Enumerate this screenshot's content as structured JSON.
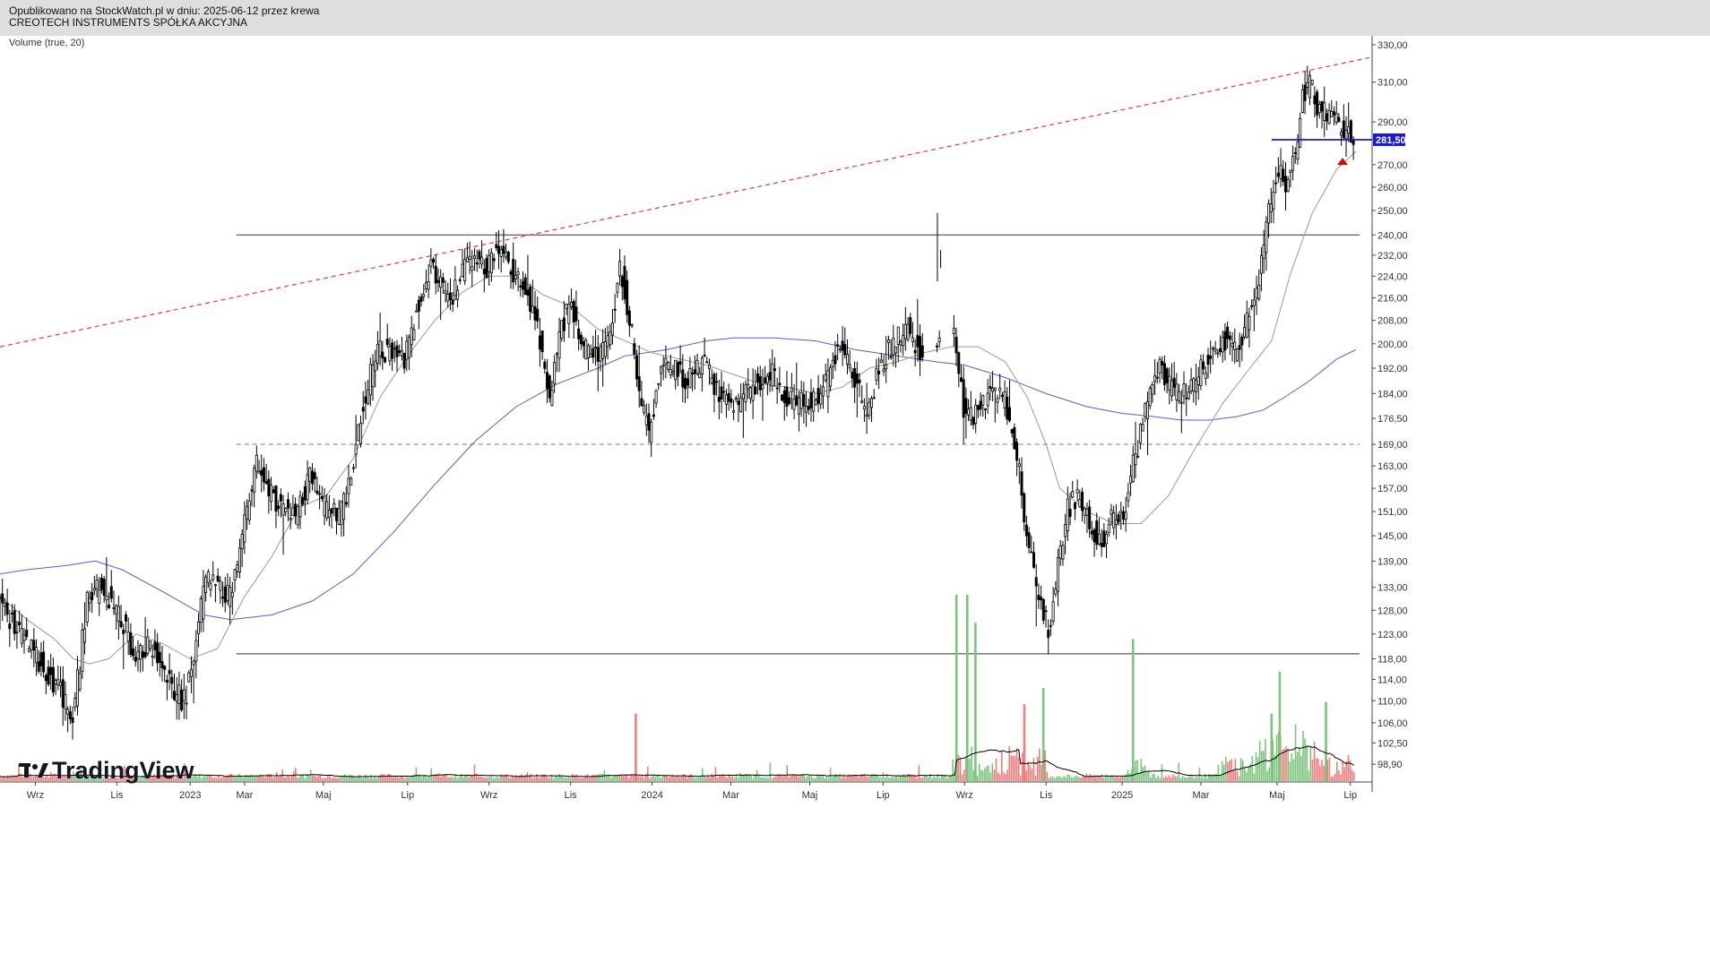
{
  "header": {
    "published": "Opublikowano na StockWatch.pl w dniu: 2025-06-12 przez krewa",
    "instrument": "CREOTECH INSTRUMENTS SPÓŁKA AKCYJNA"
  },
  "indicator_label": "Volume (true, 20)",
  "logo": {
    "text": "TradingView",
    "icon": "tradingview-logo-icon"
  },
  "colors": {
    "candle": "#000000",
    "ma_short": "#9a9a9a",
    "ma_long": "#5b5bd6",
    "trendline": "#e53935",
    "price_marker": "#1a1ad6",
    "volume_up": "#7cc47c",
    "volume_down": "#ef7d7d",
    "volume_ma": "#000000",
    "alert": "#e00000"
  },
  "chart_data": {
    "type": "candlestick",
    "y_axis": {
      "ticks": [
        "330,00",
        "310,00",
        "290,00",
        "270,00",
        "260,00",
        "250,00",
        "240,00",
        "232,00",
        "224,00",
        "216,00",
        "208,00",
        "200,00",
        "192,00",
        "184,00",
        "176,50",
        "169,00",
        "163,00",
        "157,00",
        "151,00",
        "145,00",
        "139,00",
        "133,00",
        "128,00",
        "123,00",
        "118,00",
        "114,00",
        "110,00",
        "106,00",
        "102,50",
        "98,90"
      ],
      "tick_values": [
        330,
        310,
        290,
        270,
        260,
        250,
        240,
        232,
        224,
        216,
        208,
        200,
        192,
        184,
        176.5,
        169,
        163,
        157,
        151,
        145,
        139,
        133,
        128,
        123,
        118,
        114,
        110,
        106,
        102.5,
        98.9
      ],
      "range": [
        96,
        335
      ],
      "scale": "log"
    },
    "x_axis": {
      "labels": [
        {
          "t": 1.3,
          "label": "Wrz"
        },
        {
          "t": 4.3,
          "label": "Lis"
        },
        {
          "t": 7.0,
          "label": "2023"
        },
        {
          "t": 9.0,
          "label": "Mar"
        },
        {
          "t": 11.9,
          "label": "Maj"
        },
        {
          "t": 15.0,
          "label": "Lip"
        },
        {
          "t": 18.0,
          "label": "Wrz"
        },
        {
          "t": 21.0,
          "label": "Lis"
        },
        {
          "t": 24.0,
          "label": "2024"
        },
        {
          "t": 26.9,
          "label": "Mar"
        },
        {
          "t": 29.8,
          "label": "Maj"
        },
        {
          "t": 32.5,
          "label": "Lip"
        },
        {
          "t": 35.5,
          "label": "Wrz"
        },
        {
          "t": 38.5,
          "label": "Lis"
        },
        {
          "t": 41.3,
          "label": "2025"
        },
        {
          "t": 44.2,
          "label": "Mar"
        },
        {
          "t": 47.0,
          "label": "Maj"
        },
        {
          "t": 49.7,
          "label": "Lip"
        }
      ],
      "range": [
        0,
        50.5
      ]
    },
    "last_price": {
      "value": 281.5,
      "label": "281,50"
    },
    "price_path": [
      [
        0.0,
        131
      ],
      [
        0.7,
        124
      ],
      [
        1.5,
        118
      ],
      [
        2.3,
        112
      ],
      [
        2.7,
        106
      ],
      [
        3.0,
        116
      ],
      [
        3.3,
        130
      ],
      [
        3.8,
        133
      ],
      [
        4.3,
        129
      ],
      [
        4.7,
        124
      ],
      [
        5.0,
        116
      ],
      [
        5.5,
        121
      ],
      [
        6.0,
        118
      ],
      [
        6.4,
        112
      ],
      [
        6.9,
        110
      ],
      [
        7.3,
        122
      ],
      [
        7.7,
        135
      ],
      [
        8.2,
        132
      ],
      [
        8.6,
        131
      ],
      [
        9.0,
        145
      ],
      [
        9.5,
        164
      ],
      [
        10.0,
        156
      ],
      [
        10.5,
        152
      ],
      [
        11.0,
        150
      ],
      [
        11.5,
        160
      ],
      [
        12.0,
        152
      ],
      [
        12.6,
        150
      ],
      [
        13.0,
        160
      ],
      [
        13.4,
        178
      ],
      [
        14.0,
        200
      ],
      [
        14.5,
        196
      ],
      [
        15.0,
        195
      ],
      [
        15.5,
        215
      ],
      [
        16.0,
        229
      ],
      [
        16.6,
        213
      ],
      [
        17.3,
        230
      ],
      [
        18.0,
        228
      ],
      [
        18.5,
        236
      ],
      [
        19.0,
        226
      ],
      [
        19.5,
        218
      ],
      [
        20.0,
        200
      ],
      [
        20.3,
        182
      ],
      [
        20.7,
        205
      ],
      [
        21.1,
        213
      ],
      [
        21.5,
        199
      ],
      [
        22.0,
        197
      ],
      [
        22.5,
        200
      ],
      [
        22.9,
        228
      ],
      [
        23.3,
        207
      ],
      [
        23.7,
        180
      ],
      [
        24.0,
        171
      ],
      [
        24.4,
        192
      ],
      [
        25.0,
        191
      ],
      [
        25.5,
        188
      ],
      [
        26.0,
        195
      ],
      [
        26.5,
        185
      ],
      [
        27.0,
        181
      ],
      [
        27.5,
        183
      ],
      [
        28.0,
        188
      ],
      [
        28.5,
        190
      ],
      [
        29.0,
        183
      ],
      [
        29.5,
        181
      ],
      [
        30.0,
        181
      ],
      [
        30.5,
        187
      ],
      [
        31.0,
        201
      ],
      [
        31.5,
        190
      ],
      [
        32.0,
        177
      ],
      [
        32.5,
        194
      ],
      [
        33.0,
        201
      ],
      [
        33.5,
        205
      ],
      [
        34.0,
        196
      ],
      [
        34.6,
        199
      ],
      [
        35.2,
        204
      ],
      [
        35.6,
        176
      ],
      [
        36.0,
        178
      ],
      [
        36.6,
        186
      ],
      [
        37.1,
        181
      ],
      [
        37.5,
        166
      ],
      [
        37.9,
        144
      ],
      [
        38.4,
        128
      ],
      [
        38.7,
        124
      ],
      [
        39.0,
        137
      ],
      [
        39.4,
        152
      ],
      [
        39.8,
        155
      ],
      [
        40.2,
        148
      ],
      [
        40.6,
        143
      ],
      [
        41.0,
        150
      ],
      [
        41.4,
        148
      ],
      [
        41.8,
        166
      ],
      [
        42.0,
        169
      ],
      [
        42.4,
        186
      ],
      [
        42.8,
        192
      ],
      [
        43.3,
        184
      ],
      [
        43.7,
        185
      ],
      [
        44.2,
        190
      ],
      [
        44.7,
        197
      ],
      [
        45.2,
        202
      ],
      [
        45.6,
        196
      ],
      [
        46.0,
        208
      ],
      [
        46.4,
        222
      ],
      [
        46.7,
        243
      ],
      [
        47.1,
        268
      ],
      [
        47.4,
        263
      ],
      [
        47.8,
        276
      ],
      [
        48.0,
        302
      ],
      [
        48.3,
        308
      ],
      [
        48.7,
        295
      ],
      [
        49.0,
        292
      ],
      [
        49.3,
        288
      ],
      [
        49.6,
        287
      ],
      [
        49.9,
        284
      ]
    ],
    "ma_short_path": [
      [
        0.0,
        131
      ],
      [
        1.0,
        126
      ],
      [
        2.0,
        122
      ],
      [
        2.7,
        118
      ],
      [
        3.3,
        117
      ],
      [
        4.0,
        118
      ],
      [
        5.0,
        123
      ],
      [
        6.0,
        121
      ],
      [
        7.0,
        118
      ],
      [
        8.0,
        120
      ],
      [
        9.0,
        131
      ],
      [
        10.0,
        140
      ],
      [
        11.0,
        152
      ],
      [
        12.0,
        155
      ],
      [
        13.0,
        165
      ],
      [
        14.0,
        183
      ],
      [
        15.0,
        196
      ],
      [
        16.0,
        208
      ],
      [
        17.0,
        218
      ],
      [
        18.0,
        224
      ],
      [
        19.0,
        224
      ],
      [
        20.0,
        217
      ],
      [
        21.0,
        213
      ],
      [
        22.0,
        205
      ],
      [
        23.0,
        201
      ],
      [
        24.0,
        197
      ],
      [
        25.0,
        195
      ],
      [
        26.0,
        193
      ],
      [
        27.0,
        190
      ],
      [
        28.0,
        187
      ],
      [
        29.0,
        186
      ],
      [
        30.0,
        184
      ],
      [
        31.0,
        186
      ],
      [
        32.0,
        192
      ],
      [
        33.0,
        194
      ],
      [
        34.0,
        197
      ],
      [
        35.0,
        199
      ],
      [
        36.0,
        199
      ],
      [
        37.0,
        194
      ],
      [
        37.8,
        183
      ],
      [
        38.5,
        169
      ],
      [
        39.0,
        157
      ],
      [
        40.0,
        151
      ],
      [
        41.0,
        148
      ],
      [
        42.0,
        148
      ],
      [
        43.0,
        155
      ],
      [
        44.0,
        168
      ],
      [
        45.0,
        181
      ],
      [
        46.0,
        192
      ],
      [
        46.8,
        201
      ],
      [
        47.5,
        225
      ],
      [
        48.3,
        249
      ],
      [
        49.2,
        268
      ],
      [
        49.9,
        276
      ]
    ],
    "ma_long_path": [
      [
        0.0,
        136
      ],
      [
        1.0,
        137
      ],
      [
        2.5,
        138
      ],
      [
        3.5,
        139
      ],
      [
        4.5,
        137
      ],
      [
        6.0,
        132
      ],
      [
        7.5,
        127
      ],
      [
        8.5,
        126
      ],
      [
        10.0,
        127
      ],
      [
        11.5,
        130
      ],
      [
        13.0,
        136
      ],
      [
        14.5,
        146
      ],
      [
        16.0,
        158
      ],
      [
        17.5,
        170
      ],
      [
        19.0,
        180
      ],
      [
        20.5,
        187
      ],
      [
        22.0,
        192
      ],
      [
        23.0,
        196
      ],
      [
        24.5,
        198
      ],
      [
        26.0,
        201
      ],
      [
        27.0,
        202
      ],
      [
        28.5,
        202
      ],
      [
        30.0,
        201
      ],
      [
        31.5,
        198
      ],
      [
        33.0,
        196
      ],
      [
        34.5,
        194
      ],
      [
        35.5,
        193
      ],
      [
        37.0,
        189
      ],
      [
        38.5,
        184
      ],
      [
        40.0,
        180
      ],
      [
        41.3,
        178
      ],
      [
        42.5,
        177
      ],
      [
        43.5,
        176
      ],
      [
        44.5,
        176
      ],
      [
        45.5,
        177
      ],
      [
        46.5,
        179
      ],
      [
        47.3,
        183
      ],
      [
        48.2,
        188
      ],
      [
        49.2,
        195
      ],
      [
        49.9,
        198
      ]
    ],
    "vol_spikes": [
      {
        "t": 35.2,
        "v": 0.8,
        "up": true
      },
      {
        "t": 35.6,
        "v": 0.8,
        "up": true
      },
      {
        "t": 35.9,
        "v": 0.68,
        "up": true
      },
      {
        "t": 37.7,
        "v": 0.33,
        "up": false
      },
      {
        "t": 38.4,
        "v": 0.4,
        "up": true
      },
      {
        "t": 41.7,
        "v": 0.61,
        "up": true
      },
      {
        "t": 23.4,
        "v": 0.29,
        "up": false
      },
      {
        "t": 47.1,
        "v": 0.47,
        "up": true
      },
      {
        "t": 48.8,
        "v": 0.34,
        "up": true
      },
      {
        "t": 46.8,
        "v": 0.29,
        "up": true
      }
    ],
    "levels": [
      {
        "value": 240,
        "style": "solid",
        "t_start": 8.7,
        "t_end": 50.5
      },
      {
        "value": 169,
        "style": "dashed",
        "t_start": 8.7,
        "t_end": 50.5
      },
      {
        "value": 119,
        "style": "solid",
        "t_start": 8.7,
        "t_end": 50.5
      }
    ],
    "trendline": {
      "from": [
        0,
        199
      ],
      "to": [
        50.5,
        323
      ]
    },
    "support_line": {
      "from": [
        46.8,
        281.5
      ],
      "to": [
        50.5,
        281.5
      ]
    }
  }
}
